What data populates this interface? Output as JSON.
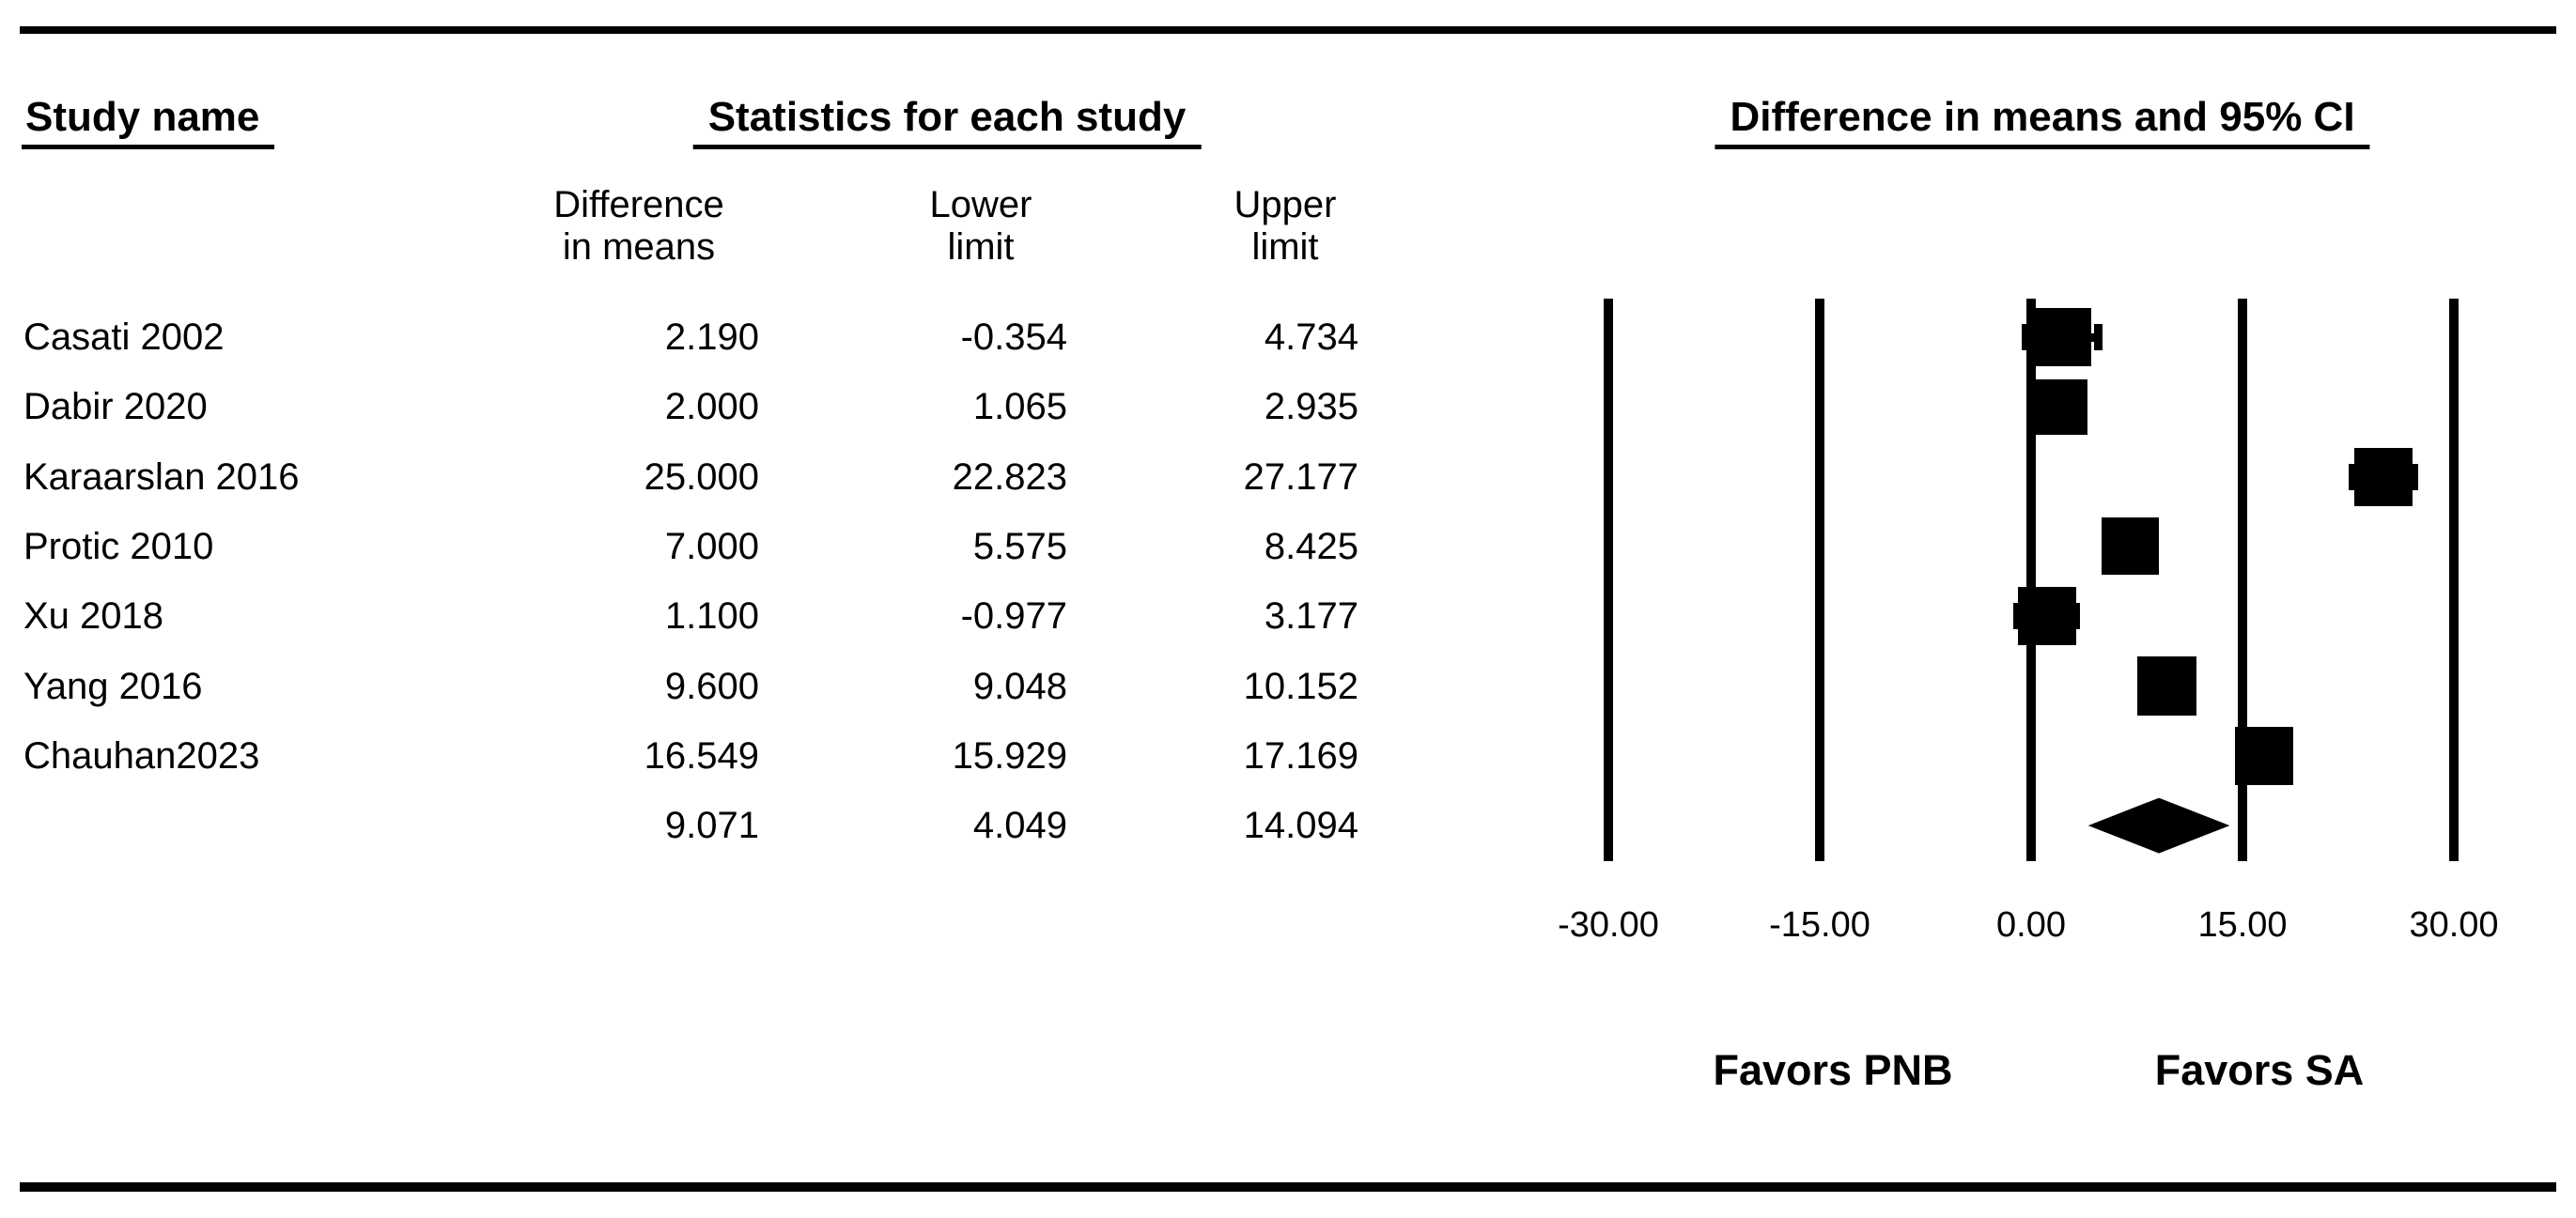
{
  "chart_data": {
    "type": "scatter",
    "subtype": "forest-plot-meta-analysis",
    "title": "Difference in means and 95% CI",
    "table_title": "Statistics for each study",
    "study_column_header": "Study name",
    "column_headers": [
      [
        "Difference",
        "in means"
      ],
      [
        "Lower",
        "limit"
      ],
      [
        "Upper",
        "limit"
      ]
    ],
    "studies": [
      {
        "name": "Casati 2002",
        "difference_in_means": 2.19,
        "lower_limit": -0.354,
        "upper_limit": 4.734,
        "labels": {
          "diff": "2.190",
          "lower": "-0.354",
          "upper": "4.734"
        },
        "marker_size_px": 62
      },
      {
        "name": "Dabir 2020",
        "difference_in_means": 2.0,
        "lower_limit": 1.065,
        "upper_limit": 2.935,
        "labels": {
          "diff": "2.000",
          "lower": "1.065",
          "upper": "2.935"
        },
        "marker_size_px": 59
      },
      {
        "name": "Karaarslan 2016",
        "difference_in_means": 25.0,
        "lower_limit": 22.823,
        "upper_limit": 27.177,
        "labels": {
          "diff": "25.000",
          "lower": "22.823",
          "upper": "27.177"
        },
        "marker_size_px": 62
      },
      {
        "name": "Protic 2010",
        "difference_in_means": 7.0,
        "lower_limit": 5.575,
        "upper_limit": 8.425,
        "labels": {
          "diff": "7.000",
          "lower": "5.575",
          "upper": "8.425"
        },
        "marker_size_px": 61
      },
      {
        "name": "Xu 2018",
        "difference_in_means": 1.1,
        "lower_limit": -0.977,
        "upper_limit": 3.177,
        "labels": {
          "diff": "1.100",
          "lower": "-0.977",
          "upper": "3.177"
        },
        "marker_size_px": 62
      },
      {
        "name": "Yang 2016",
        "difference_in_means": 9.6,
        "lower_limit": 9.048,
        "upper_limit": 10.152,
        "labels": {
          "diff": "9.600",
          "lower": "9.048",
          "upper": "10.152"
        },
        "marker_size_px": 63
      },
      {
        "name": "Chauhan2023",
        "difference_in_means": 16.549,
        "lower_limit": 15.929,
        "upper_limit": 17.169,
        "labels": {
          "diff": "16.549",
          "lower": "15.929",
          "upper": "17.169"
        },
        "marker_size_px": 62
      }
    ],
    "summary": {
      "difference_in_means": 9.071,
      "lower_limit": 4.049,
      "upper_limit": 14.094,
      "labels": {
        "diff": "9.071",
        "lower": "4.049",
        "upper": "14.094"
      },
      "marker": "diamond"
    },
    "x_axis": {
      "xlim": [
        -30,
        30
      ],
      "tick_values": [
        -30,
        -15,
        0,
        15,
        30
      ],
      "tick_labels": [
        "-30.00",
        "-15.00",
        "0.00",
        "15.00",
        "30.00"
      ],
      "gridlines": true
    },
    "annotations": {
      "favors_left": "Favors PNB",
      "favors_right": "Favors SA"
    },
    "legend_position": "none",
    "colors": {
      "ink": "#000000",
      "background": "#ffffff"
    }
  }
}
